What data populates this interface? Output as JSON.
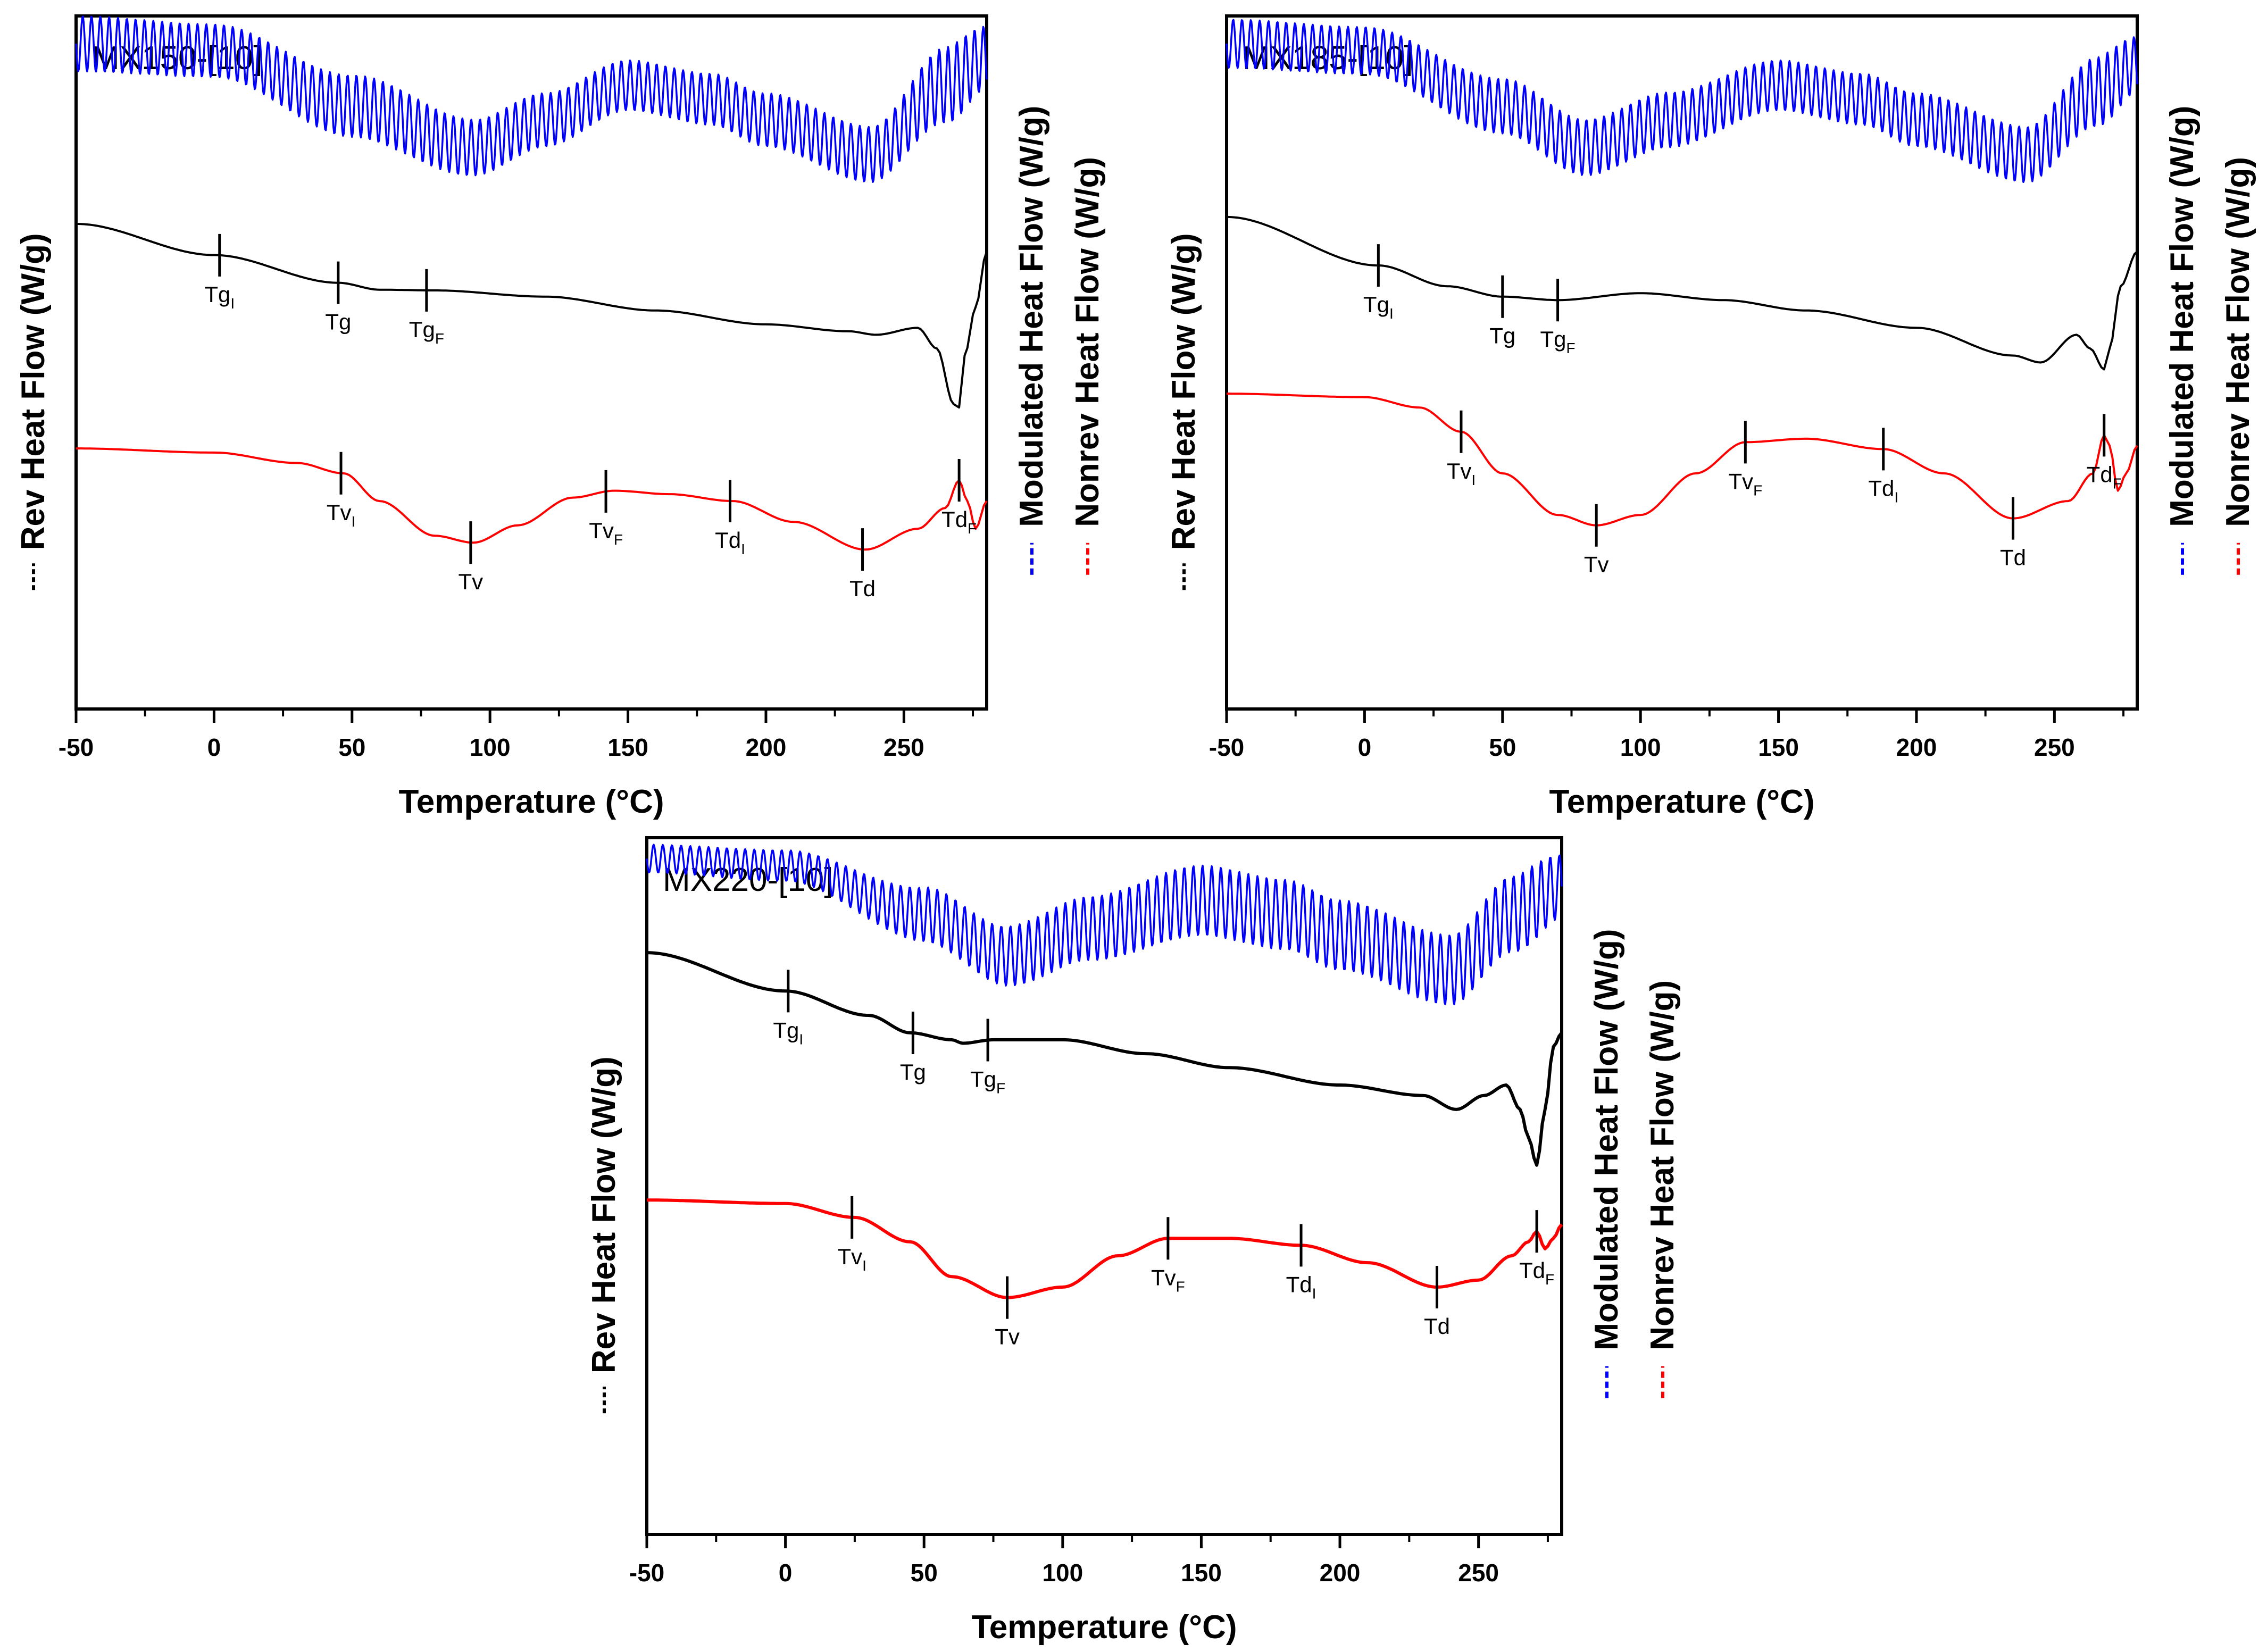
{
  "chart_data": [
    {
      "type": "line",
      "title": "MX150-[10]",
      "xlabel": "Temperature (°C)",
      "xlim": [
        -50,
        280
      ],
      "xticks": [
        -50,
        0,
        50,
        100,
        150,
        200,
        250
      ],
      "grid": false,
      "series": [
        {
          "name": "Modulated Heat Flow (W/g)",
          "color": "#0000ff",
          "style": "oscillating",
          "baseline": [
            [
              -50,
              0.04
            ],
            [
              0,
              0.05
            ],
            [
              50,
              0.13
            ],
            [
              94,
              0.19
            ],
            [
              120,
              0.15
            ],
            [
              150,
              0.1
            ],
            [
              180,
              0.12
            ],
            [
              200,
              0.15
            ],
            [
              238,
              0.2
            ],
            [
              265,
              0.1
            ],
            [
              280,
              0.06
            ]
          ],
          "amplitude": [
            [
              -50,
              0.04
            ],
            [
              0,
              0.038
            ],
            [
              60,
              0.045
            ],
            [
              100,
              0.04
            ],
            [
              150,
              0.036
            ],
            [
              240,
              0.04
            ],
            [
              268,
              0.055
            ],
            [
              280,
              0.045
            ]
          ],
          "period_c": 3.2
        },
        {
          "name": "Rev Heat Flow (W/g)",
          "color": "#000000",
          "points": [
            [
              -50,
              0.3
            ],
            [
              0,
              0.345
            ],
            [
              45,
              0.385
            ],
            [
              60,
              0.395
            ],
            [
              80,
              0.396
            ],
            [
              120,
              0.405
            ],
            [
              160,
              0.425
            ],
            [
              200,
              0.445
            ],
            [
              230,
              0.455
            ],
            [
              240,
              0.46
            ],
            [
              255,
              0.45
            ],
            [
              262,
              0.48
            ],
            [
              268,
              0.56
            ],
            [
              270,
              0.565
            ],
            [
              272,
              0.49
            ],
            [
              276,
              0.42
            ],
            [
              280,
              0.34
            ]
          ]
        },
        {
          "name": "Nonrev Heat Flow (W/g)",
          "color": "#ff0000",
          "points": [
            [
              -50,
              0.624
            ],
            [
              0,
              0.63
            ],
            [
              30,
              0.645
            ],
            [
              47,
              0.66
            ],
            [
              60,
              0.7
            ],
            [
              80,
              0.75
            ],
            [
              94,
              0.76
            ],
            [
              110,
              0.735
            ],
            [
              130,
              0.695
            ],
            [
              145,
              0.685
            ],
            [
              165,
              0.69
            ],
            [
              188,
              0.7
            ],
            [
              210,
              0.73
            ],
            [
              236,
              0.77
            ],
            [
              255,
              0.74
            ],
            [
              265,
              0.71
            ],
            [
              270,
              0.67
            ],
            [
              273,
              0.7
            ],
            [
              276,
              0.74
            ],
            [
              280,
              0.7
            ]
          ]
        }
      ],
      "annotations": [
        {
          "label": "Tg",
          "sub": "I",
          "series": "Rev Heat Flow (W/g)",
          "x": 2
        },
        {
          "label": "Tg",
          "sub": "",
          "series": "Rev Heat Flow (W/g)",
          "x": 45
        },
        {
          "label": "Tg",
          "sub": "F",
          "series": "Rev Heat Flow (W/g)",
          "x": 77
        },
        {
          "label": "Tv",
          "sub": "I",
          "series": "Nonrev Heat Flow (W/g)",
          "x": 46
        },
        {
          "label": "Tv",
          "sub": "",
          "series": "Nonrev Heat Flow (W/g)",
          "x": 93
        },
        {
          "label": "Tv",
          "sub": "F",
          "series": "Nonrev Heat Flow (W/g)",
          "x": 142
        },
        {
          "label": "Td",
          "sub": "I",
          "series": "Nonrev Heat Flow (W/g)",
          "x": 187
        },
        {
          "label": "Td",
          "sub": "",
          "series": "Nonrev Heat Flow (W/g)",
          "x": 235
        },
        {
          "label": "Td",
          "sub": "F",
          "series": "Nonrev Heat Flow (W/g)",
          "x": 270
        }
      ],
      "ylabel_left": "Rev Heat Flow (W/g)",
      "ylabel_right": [
        "Modulated Heat Flow (W/g)",
        "Nonrev Heat Flow (W/g)"
      ]
    },
    {
      "type": "line",
      "title": "MX185-[10]",
      "xlabel": "Temperature (°C)",
      "xlim": [
        -50,
        280
      ],
      "xticks": [
        -50,
        0,
        50,
        100,
        150,
        200,
        250
      ],
      "grid": false,
      "series": [
        {
          "name": "Modulated Heat Flow (W/g)",
          "color": "#0000ff",
          "style": "oscillating",
          "baseline": [
            [
              -50,
              0.04
            ],
            [
              0,
              0.05
            ],
            [
              50,
              0.13
            ],
            [
              80,
              0.19
            ],
            [
              110,
              0.15
            ],
            [
              150,
              0.1
            ],
            [
              180,
              0.12
            ],
            [
              200,
              0.15
            ],
            [
              240,
              0.2
            ],
            [
              265,
              0.11
            ],
            [
              280,
              0.07
            ]
          ],
          "amplitude": [
            [
              -50,
              0.035
            ],
            [
              0,
              0.034
            ],
            [
              60,
              0.04
            ],
            [
              100,
              0.04
            ],
            [
              150,
              0.036
            ],
            [
              240,
              0.04
            ],
            [
              268,
              0.05
            ],
            [
              280,
              0.04
            ]
          ],
          "period_c": 3.2
        },
        {
          "name": "Rev Heat Flow (W/g)",
          "color": "#000000",
          "points": [
            [
              -50,
              0.29
            ],
            [
              5,
              0.36
            ],
            [
              30,
              0.39
            ],
            [
              50,
              0.405
            ],
            [
              70,
              0.41
            ],
            [
              100,
              0.4
            ],
            [
              130,
              0.41
            ],
            [
              160,
              0.425
            ],
            [
              200,
              0.45
            ],
            [
              235,
              0.49
            ],
            [
              245,
              0.5
            ],
            [
              258,
              0.46
            ],
            [
              263,
              0.48
            ],
            [
              268,
              0.51
            ],
            [
              270,
              0.48
            ],
            [
              274,
              0.39
            ],
            [
              280,
              0.34
            ]
          ]
        },
        {
          "name": "Nonrev Heat Flow (W/g)",
          "color": "#ff0000",
          "points": [
            [
              -50,
              0.545
            ],
            [
              0,
              0.55
            ],
            [
              20,
              0.565
            ],
            [
              35,
              0.6
            ],
            [
              50,
              0.66
            ],
            [
              70,
              0.72
            ],
            [
              84,
              0.735
            ],
            [
              100,
              0.72
            ],
            [
              120,
              0.66
            ],
            [
              138,
              0.615
            ],
            [
              160,
              0.61
            ],
            [
              188,
              0.625
            ],
            [
              210,
              0.66
            ],
            [
              235,
              0.725
            ],
            [
              255,
              0.7
            ],
            [
              264,
              0.66
            ],
            [
              268,
              0.605
            ],
            [
              270,
              0.62
            ],
            [
              273,
              0.685
            ],
            [
              276,
              0.66
            ],
            [
              280,
              0.62
            ]
          ]
        }
      ],
      "annotations": [
        {
          "label": "Tg",
          "sub": "I",
          "series": "Rev Heat Flow (W/g)",
          "x": 5
        },
        {
          "label": "Tg",
          "sub": "",
          "series": "Rev Heat Flow (W/g)",
          "x": 50
        },
        {
          "label": "Tg",
          "sub": "F",
          "series": "Rev Heat Flow (W/g)",
          "x": 70
        },
        {
          "label": "Tv",
          "sub": "I",
          "series": "Nonrev Heat Flow (W/g)",
          "x": 35
        },
        {
          "label": "Tv",
          "sub": "",
          "series": "Nonrev Heat Flow (W/g)",
          "x": 84
        },
        {
          "label": "Tv",
          "sub": "F",
          "series": "Nonrev Heat Flow (W/g)",
          "x": 138
        },
        {
          "label": "Td",
          "sub": "I",
          "series": "Nonrev Heat Flow (W/g)",
          "x": 188
        },
        {
          "label": "Td",
          "sub": "",
          "series": "Nonrev Heat Flow (W/g)",
          "x": 235
        },
        {
          "label": "Td",
          "sub": "F",
          "series": "Nonrev Heat Flow (W/g)",
          "x": 268
        }
      ],
      "ylabel_left": "Rev Heat Flow (W/g)",
      "ylabel_right": [
        "Modulated Heat Flow (W/g)",
        "Nonrev Heat Flow (W/g)"
      ]
    },
    {
      "type": "line",
      "title": "MX220-[10]",
      "xlabel": "Temperature (°C)",
      "xlim": [
        -50,
        280
      ],
      "xticks": [
        -50,
        0,
        50,
        100,
        150,
        200,
        250
      ],
      "grid": false,
      "series": [
        {
          "name": "Modulated Heat Flow (W/g)",
          "color": "#0000ff",
          "style": "oscillating",
          "baseline": [
            [
              -50,
              0.03
            ],
            [
              0,
              0.04
            ],
            [
              50,
              0.11
            ],
            [
              80,
              0.17
            ],
            [
              110,
              0.13
            ],
            [
              150,
              0.09
            ],
            [
              180,
              0.11
            ],
            [
              200,
              0.14
            ],
            [
              240,
              0.19
            ],
            [
              262,
              0.11
            ],
            [
              280,
              0.07
            ]
          ],
          "amplitude": [
            [
              -50,
              0.02
            ],
            [
              0,
              0.022
            ],
            [
              60,
              0.04
            ],
            [
              100,
              0.045
            ],
            [
              150,
              0.05
            ],
            [
              240,
              0.05
            ],
            [
              268,
              0.055
            ],
            [
              280,
              0.045
            ]
          ],
          "period_c": 3.3
        },
        {
          "name": "Rev Heat Flow (W/g)",
          "color": "#000000",
          "points": [
            [
              -50,
              0.165
            ],
            [
              0,
              0.22
            ],
            [
              30,
              0.255
            ],
            [
              45,
              0.28
            ],
            [
              60,
              0.29
            ],
            [
              64,
              0.295
            ],
            [
              75,
              0.29
            ],
            [
              100,
              0.29
            ],
            [
              130,
              0.31
            ],
            [
              160,
              0.33
            ],
            [
              200,
              0.355
            ],
            [
              230,
              0.37
            ],
            [
              242,
              0.39
            ],
            [
              252,
              0.37
            ],
            [
              260,
              0.355
            ],
            [
              265,
              0.39
            ],
            [
              268,
              0.43
            ],
            [
              271,
              0.47
            ],
            [
              274,
              0.39
            ],
            [
              277,
              0.3
            ],
            [
              280,
              0.28
            ]
          ]
        },
        {
          "name": "Nonrev Heat Flow (W/g)",
          "color": "#ff0000",
          "points": [
            [
              -50,
              0.52
            ],
            [
              0,
              0.525
            ],
            [
              25,
              0.545
            ],
            [
              45,
              0.58
            ],
            [
              60,
              0.63
            ],
            [
              80,
              0.66
            ],
            [
              100,
              0.645
            ],
            [
              120,
              0.6
            ],
            [
              138,
              0.575
            ],
            [
              160,
              0.575
            ],
            [
              186,
              0.585
            ],
            [
              210,
              0.61
            ],
            [
              235,
              0.645
            ],
            [
              250,
              0.635
            ],
            [
              262,
              0.6
            ],
            [
              268,
              0.58
            ],
            [
              271,
              0.565
            ],
            [
              274,
              0.59
            ],
            [
              277,
              0.575
            ],
            [
              280,
              0.555
            ]
          ]
        }
      ],
      "annotations": [
        {
          "label": "Tg",
          "sub": "I",
          "series": "Rev Heat Flow (W/g)",
          "x": 1
        },
        {
          "label": "Tg",
          "sub": "",
          "series": "Rev Heat Flow (W/g)",
          "x": 46
        },
        {
          "label": "Tg",
          "sub": "F",
          "series": "Rev Heat Flow (W/g)",
          "x": 73
        },
        {
          "label": "Tv",
          "sub": "I",
          "series": "Nonrev Heat Flow (W/g)",
          "x": 24
        },
        {
          "label": "Tv",
          "sub": "",
          "series": "Nonrev Heat Flow (W/g)",
          "x": 80
        },
        {
          "label": "Tv",
          "sub": "F",
          "series": "Nonrev Heat Flow (W/g)",
          "x": 138
        },
        {
          "label": "Td",
          "sub": "I",
          "series": "Nonrev Heat Flow (W/g)",
          "x": 186
        },
        {
          "label": "Td",
          "sub": "",
          "series": "Nonrev Heat Flow (W/g)",
          "x": 235
        },
        {
          "label": "Td",
          "sub": "F",
          "series": "Nonrev Heat Flow (W/g)",
          "x": 271
        }
      ],
      "ylabel_left": "Rev Heat Flow (W/g)",
      "ylabel_right": [
        "Modulated Heat Flow (W/g)",
        "Nonrev Heat Flow (W/g)"
      ]
    }
  ]
}
